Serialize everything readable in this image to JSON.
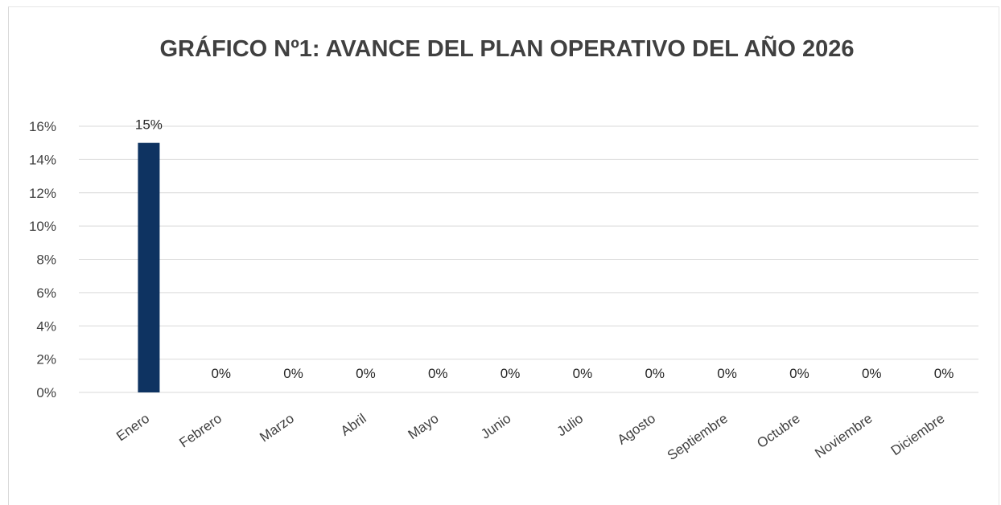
{
  "chart_data": {
    "type": "bar",
    "title": "GRÁFICO Nº1: AVANCE DEL PLAN OPERATIVO DEL AÑO 2026",
    "xlabel": "",
    "ylabel": "",
    "categories": [
      "Enero",
      "Febrero",
      "Marzo",
      "Abril",
      "Mayo",
      "Junio",
      "Julio",
      "Agosto",
      "Septiembre",
      "Octubre",
      "Noviembre",
      "Diciembre"
    ],
    "values": [
      15,
      0,
      0,
      0,
      0,
      0,
      0,
      0,
      0,
      0,
      0,
      0
    ],
    "data_labels": [
      "15%",
      "0%",
      "0%",
      "0%",
      "0%",
      "0%",
      "0%",
      "0%",
      "0%",
      "0%",
      "0%",
      "0%"
    ],
    "ylim": [
      0,
      16
    ],
    "yticks": [
      0,
      2,
      4,
      6,
      8,
      10,
      12,
      14,
      16
    ],
    "ytick_labels": [
      "0%",
      "2%",
      "4%",
      "6%",
      "8%",
      "10%",
      "12%",
      "14%",
      "16%"
    ],
    "grid": true,
    "legend": "none",
    "bar_color": "#0e3361",
    "grid_color": "#d9d9d9"
  }
}
